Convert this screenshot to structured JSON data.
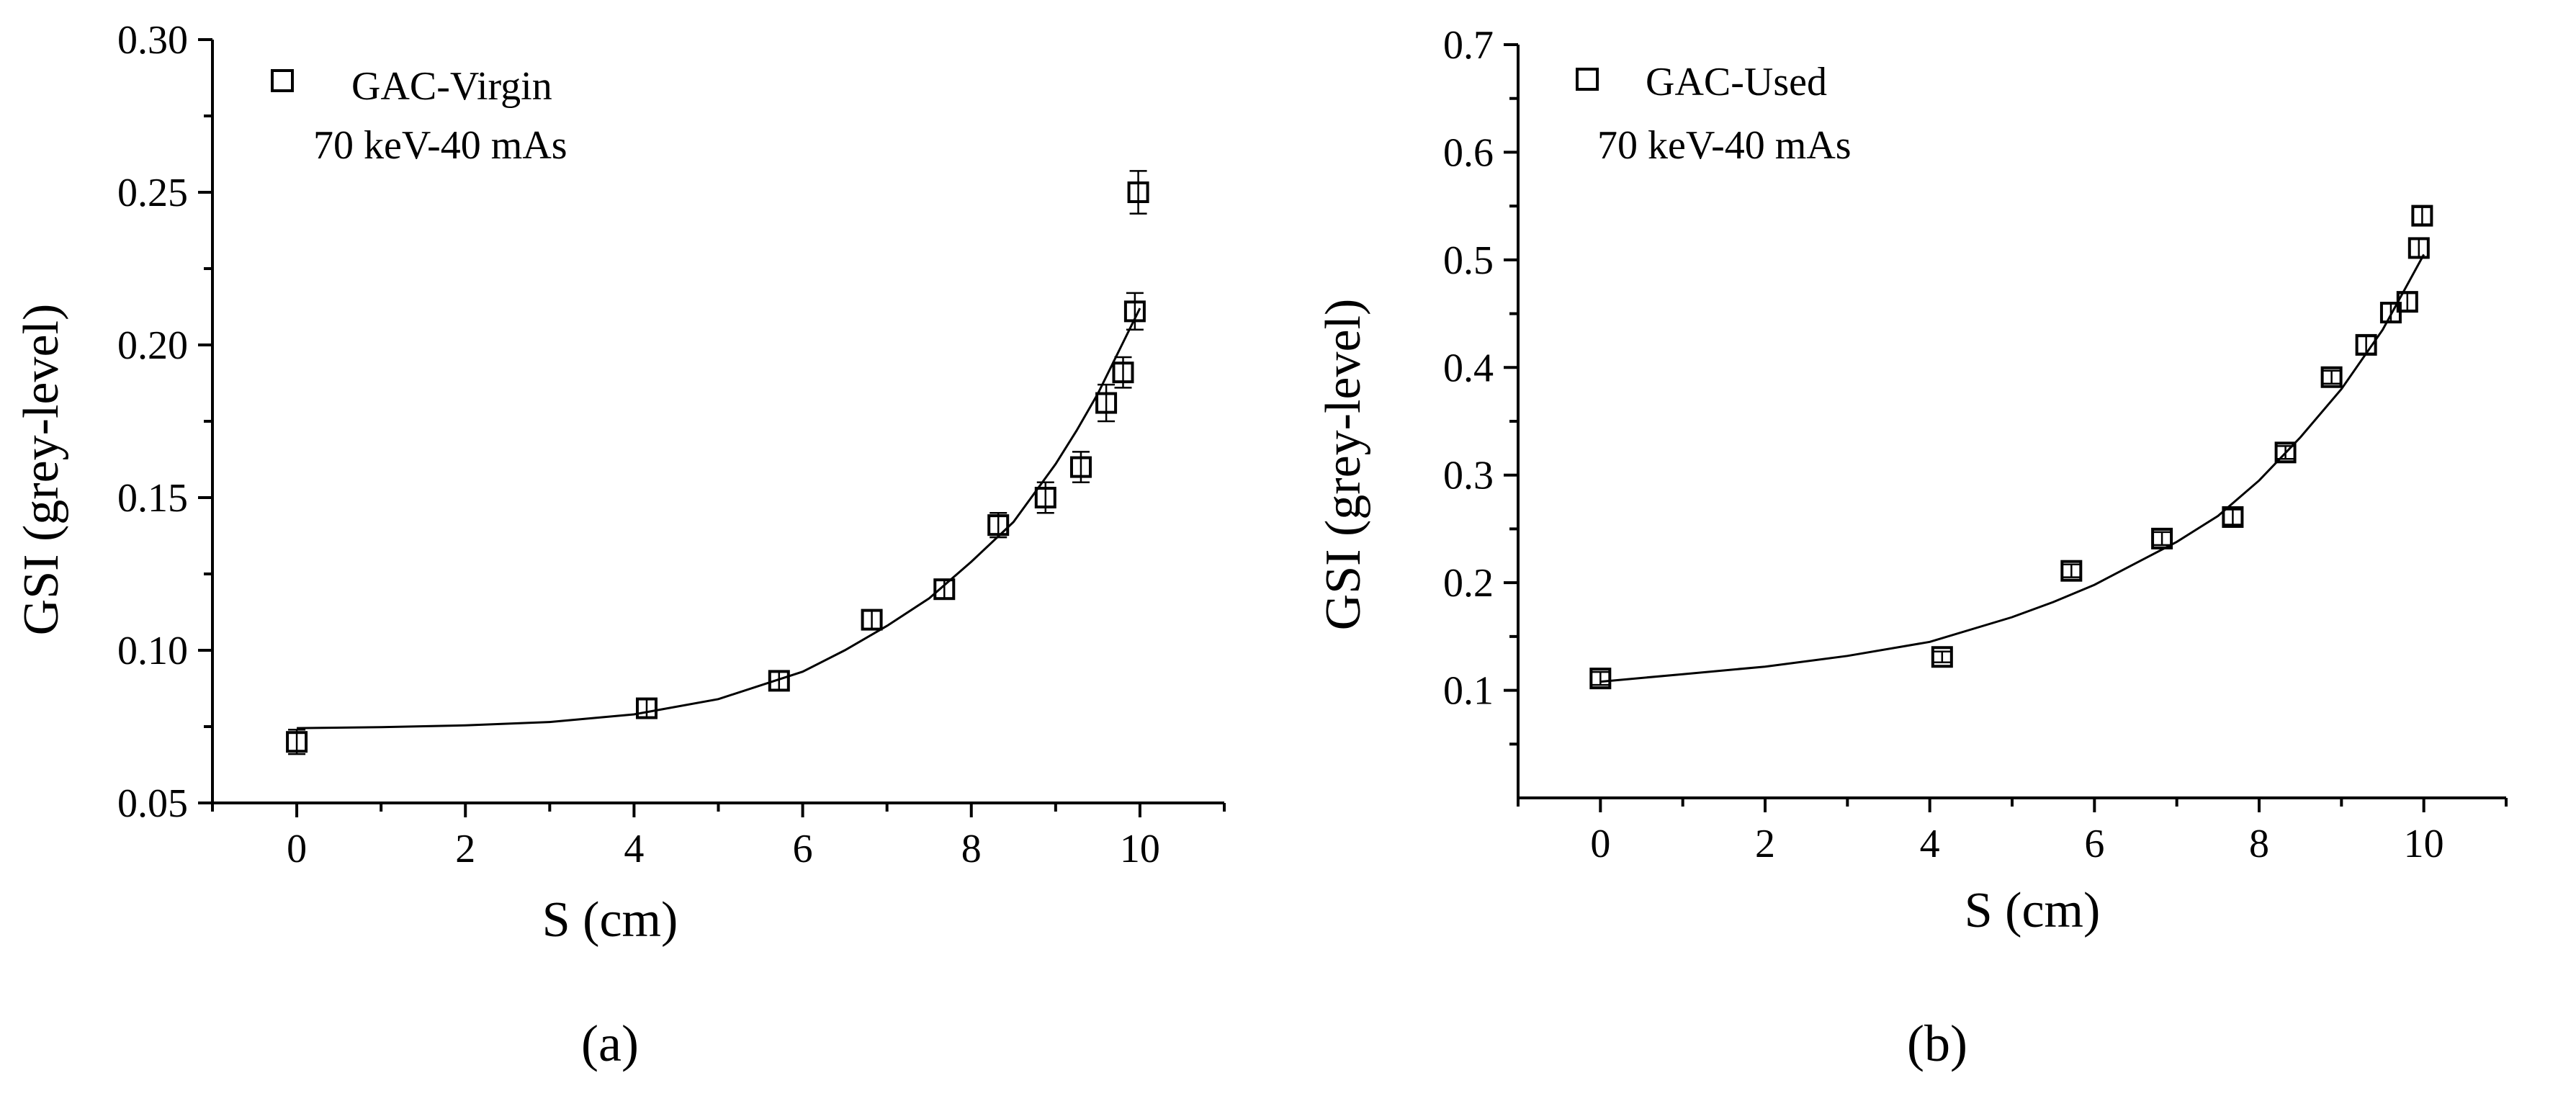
{
  "figure": {
    "colors": {
      "ink": "#000000",
      "background": "#ffffff"
    }
  },
  "chart_data": [
    {
      "type": "scatter",
      "panel_label": "(a)",
      "legend": {
        "series_name": "GAC-Virgin",
        "condition": "70 keV-40 mAs",
        "marker": "open-square",
        "placement": "top-left"
      },
      "xlabel": "S (cm)",
      "ylabel": "GSI (grey-level)",
      "xlim": [
        -1,
        11
      ],
      "ylim": [
        0.05,
        0.3
      ],
      "xticks": [
        0,
        2,
        4,
        6,
        8,
        10
      ],
      "xtick_labels": [
        "0",
        "2",
        "4",
        "6",
        "8",
        "10"
      ],
      "yticks": [
        0.05,
        0.1,
        0.15,
        0.2,
        0.25,
        0.3
      ],
      "ytick_labels": [
        "0.05",
        "0.10",
        "0.15",
        "0.20",
        "0.25",
        "0.30"
      ],
      "series": [
        {
          "name": "GAC-Virgin",
          "x": [
            0.0,
            4.15,
            5.72,
            6.82,
            7.68,
            8.32,
            8.88,
            9.3,
            9.6,
            9.8,
            9.94,
            9.98
          ],
          "y": [
            0.07,
            0.081,
            0.09,
            0.11,
            0.12,
            0.141,
            0.15,
            0.16,
            0.181,
            0.191,
            0.211,
            0.25
          ],
          "err": [
            0.004,
            0.003,
            0.003,
            0.003,
            0.003,
            0.004,
            0.005,
            0.005,
            0.006,
            0.005,
            0.006,
            0.007
          ]
        }
      ],
      "fit": {
        "x": [
          0,
          1,
          2,
          3,
          4,
          5,
          6,
          6.5,
          7,
          7.5,
          8,
          8.5,
          9,
          9.25,
          9.5,
          9.75,
          10
        ],
        "y": [
          0.0745,
          0.0748,
          0.0754,
          0.0765,
          0.079,
          0.084,
          0.093,
          0.1,
          0.108,
          0.117,
          0.129,
          0.142,
          0.161,
          0.172,
          0.184,
          0.198,
          0.212
        ]
      }
    },
    {
      "type": "scatter",
      "panel_label": "(b)",
      "legend": {
        "series_name": "GAC-Used",
        "condition": "70 keV-40 mAs",
        "marker": "open-square",
        "placement": "top-left"
      },
      "xlabel": "S (cm)",
      "ylabel": "GSI (grey-level)",
      "xlim": [
        -1,
        11
      ],
      "ylim": [
        0.0,
        0.7
      ],
      "xticks": [
        0,
        2,
        4,
        6,
        8,
        10
      ],
      "xtick_labels": [
        "0",
        "2",
        "4",
        "6",
        "8",
        "10"
      ],
      "yticks": [
        0.1,
        0.2,
        0.3,
        0.4,
        0.5,
        0.6,
        0.7
      ],
      "ytick_labels": [
        "0.1",
        "0.2",
        "0.3",
        "0.4",
        "0.5",
        "0.6",
        "0.7"
      ],
      "series": [
        {
          "name": "GAC-Used",
          "x": [
            0.0,
            4.15,
            5.72,
            6.82,
            7.68,
            8.32,
            8.88,
            9.3,
            9.6,
            9.8,
            9.94,
            9.98
          ],
          "y": [
            0.111,
            0.131,
            0.211,
            0.241,
            0.261,
            0.321,
            0.391,
            0.421,
            0.451,
            0.461,
            0.511,
            0.541
          ],
          "err": [
            0.006,
            0.005,
            0.006,
            0.006,
            0.007,
            0.006,
            0.006,
            0.008,
            0.009,
            0.008,
            0.009,
            0.008
          ]
        }
      ],
      "fit": {
        "x": [
          0,
          1,
          2,
          3,
          4,
          5,
          5.5,
          6,
          6.5,
          7,
          7.5,
          8,
          8.5,
          9,
          9.5,
          10
        ],
        "y": [
          0.108,
          0.115,
          0.122,
          0.132,
          0.145,
          0.168,
          0.182,
          0.198,
          0.218,
          0.238,
          0.262,
          0.295,
          0.335,
          0.38,
          0.435,
          0.505
        ]
      }
    }
  ]
}
